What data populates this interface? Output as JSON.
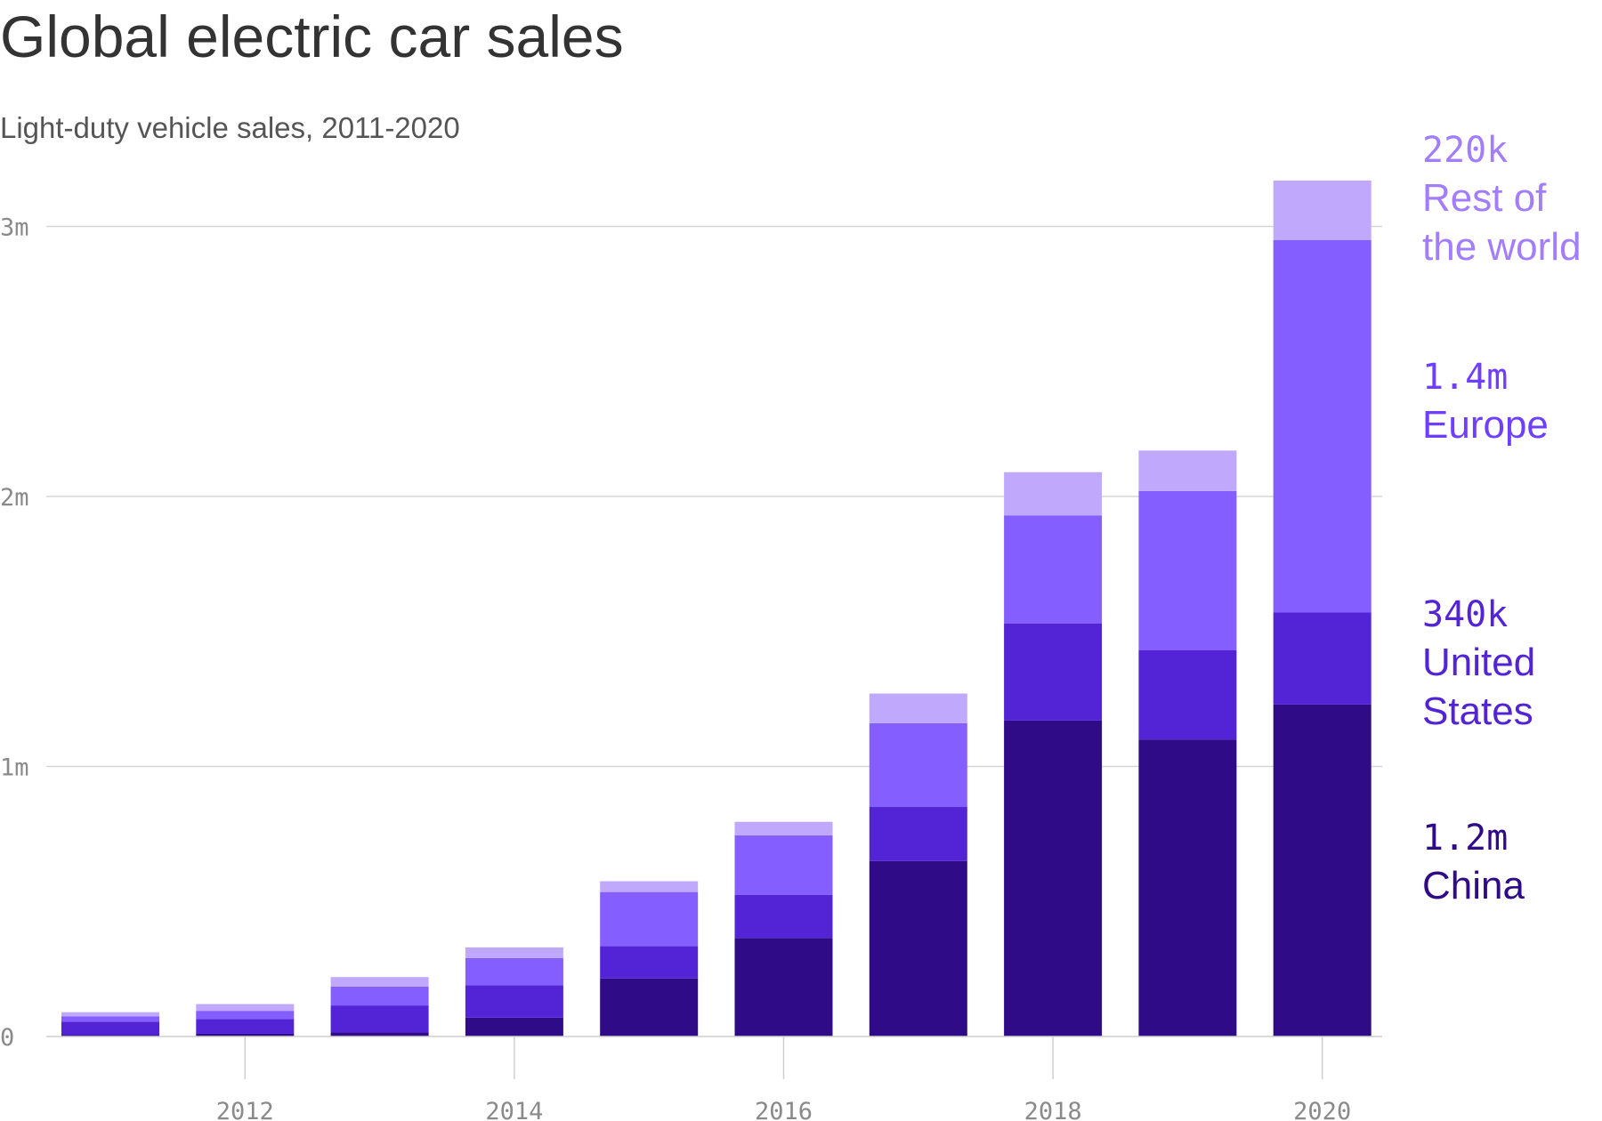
{
  "chart_data": {
    "type": "bar",
    "stacked": true,
    "title": "Global electric car sales",
    "subtitle": "Light-duty vehicle sales, 2011-2020",
    "x": [
      2011,
      2012,
      2013,
      2014,
      2015,
      2016,
      2017,
      2018,
      2019,
      2020
    ],
    "x_tick_labels": [
      "2012",
      "2014",
      "2016",
      "2018",
      "2020"
    ],
    "x_tick_values": [
      2012,
      2014,
      2016,
      2018,
      2020
    ],
    "y_tick_labels": [
      "0",
      "1m",
      "2m",
      "3m"
    ],
    "y_tick_values": [
      0,
      1000000,
      2000000,
      3000000
    ],
    "ylim": [
      0,
      3200000
    ],
    "grid": true,
    "legend": "direct labels right of last bar",
    "series": [
      {
        "name": "China",
        "color": "#2f0b87",
        "values": [
          5000,
          10000,
          15000,
          70000,
          215000,
          365000,
          650000,
          1170000,
          1100000,
          1230000
        ],
        "label_value": "1.2m",
        "label_name_lines": [
          "China"
        ]
      },
      {
        "name": "United States",
        "color": "#5224d6",
        "values": [
          50000,
          55000,
          100000,
          120000,
          120000,
          160000,
          200000,
          360000,
          330000,
          340000
        ],
        "label_value": "340k",
        "label_name_lines": [
          "United",
          "States"
        ]
      },
      {
        "name": "Europe",
        "color": "#845eff",
        "values": [
          20000,
          30000,
          70000,
          100000,
          200000,
          220000,
          310000,
          400000,
          590000,
          1380000
        ],
        "label_value": "1.4m",
        "label_name_lines": [
          "Europe"
        ]
      },
      {
        "name": "Rest of the world",
        "color": "#c0a9fd",
        "values": [
          15000,
          25000,
          35000,
          40000,
          40000,
          50000,
          110000,
          160000,
          150000,
          220000
        ],
        "label_value": "220k",
        "label_name_lines": [
          "Rest of",
          "the world"
        ]
      }
    ]
  }
}
